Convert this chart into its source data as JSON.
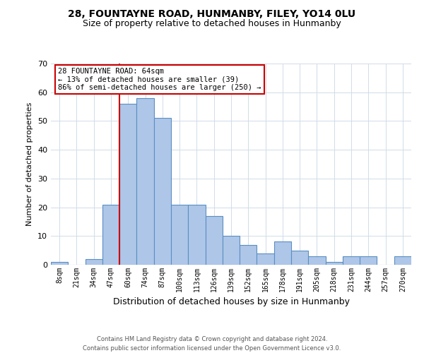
{
  "title": "28, FOUNTAYNE ROAD, HUNMANBY, FILEY, YO14 0LU",
  "subtitle": "Size of property relative to detached houses in Hunmanby",
  "xlabel": "Distribution of detached houses by size in Hunmanby",
  "ylabel": "Number of detached properties",
  "bar_labels": [
    "8sqm",
    "21sqm",
    "34sqm",
    "47sqm",
    "60sqm",
    "74sqm",
    "87sqm",
    "100sqm",
    "113sqm",
    "126sqm",
    "139sqm",
    "152sqm",
    "165sqm",
    "178sqm",
    "191sqm",
    "205sqm",
    "218sqm",
    "231sqm",
    "244sqm",
    "257sqm",
    "270sqm"
  ],
  "bar_values": [
    1,
    0,
    2,
    21,
    56,
    58,
    51,
    21,
    21,
    17,
    10,
    7,
    4,
    8,
    5,
    3,
    1,
    3,
    3,
    0,
    3
  ],
  "bar_color": "#aec6e8",
  "bar_edge_color": "#5a8fc2",
  "ylim": [
    0,
    70
  ],
  "yticks": [
    0,
    10,
    20,
    30,
    40,
    50,
    60,
    70
  ],
  "property_line_index": 4,
  "property_line_color": "#cc0000",
  "annotation_text": "28 FOUNTAYNE ROAD: 64sqm\n← 13% of detached houses are smaller (39)\n86% of semi-detached houses are larger (250) →",
  "annotation_box_color": "#ffffff",
  "annotation_box_edge": "#cc0000",
  "footer_line1": "Contains HM Land Registry data © Crown copyright and database right 2024.",
  "footer_line2": "Contains public sector information licensed under the Open Government Licence v3.0.",
  "background_color": "#ffffff",
  "grid_color": "#d0dce8"
}
